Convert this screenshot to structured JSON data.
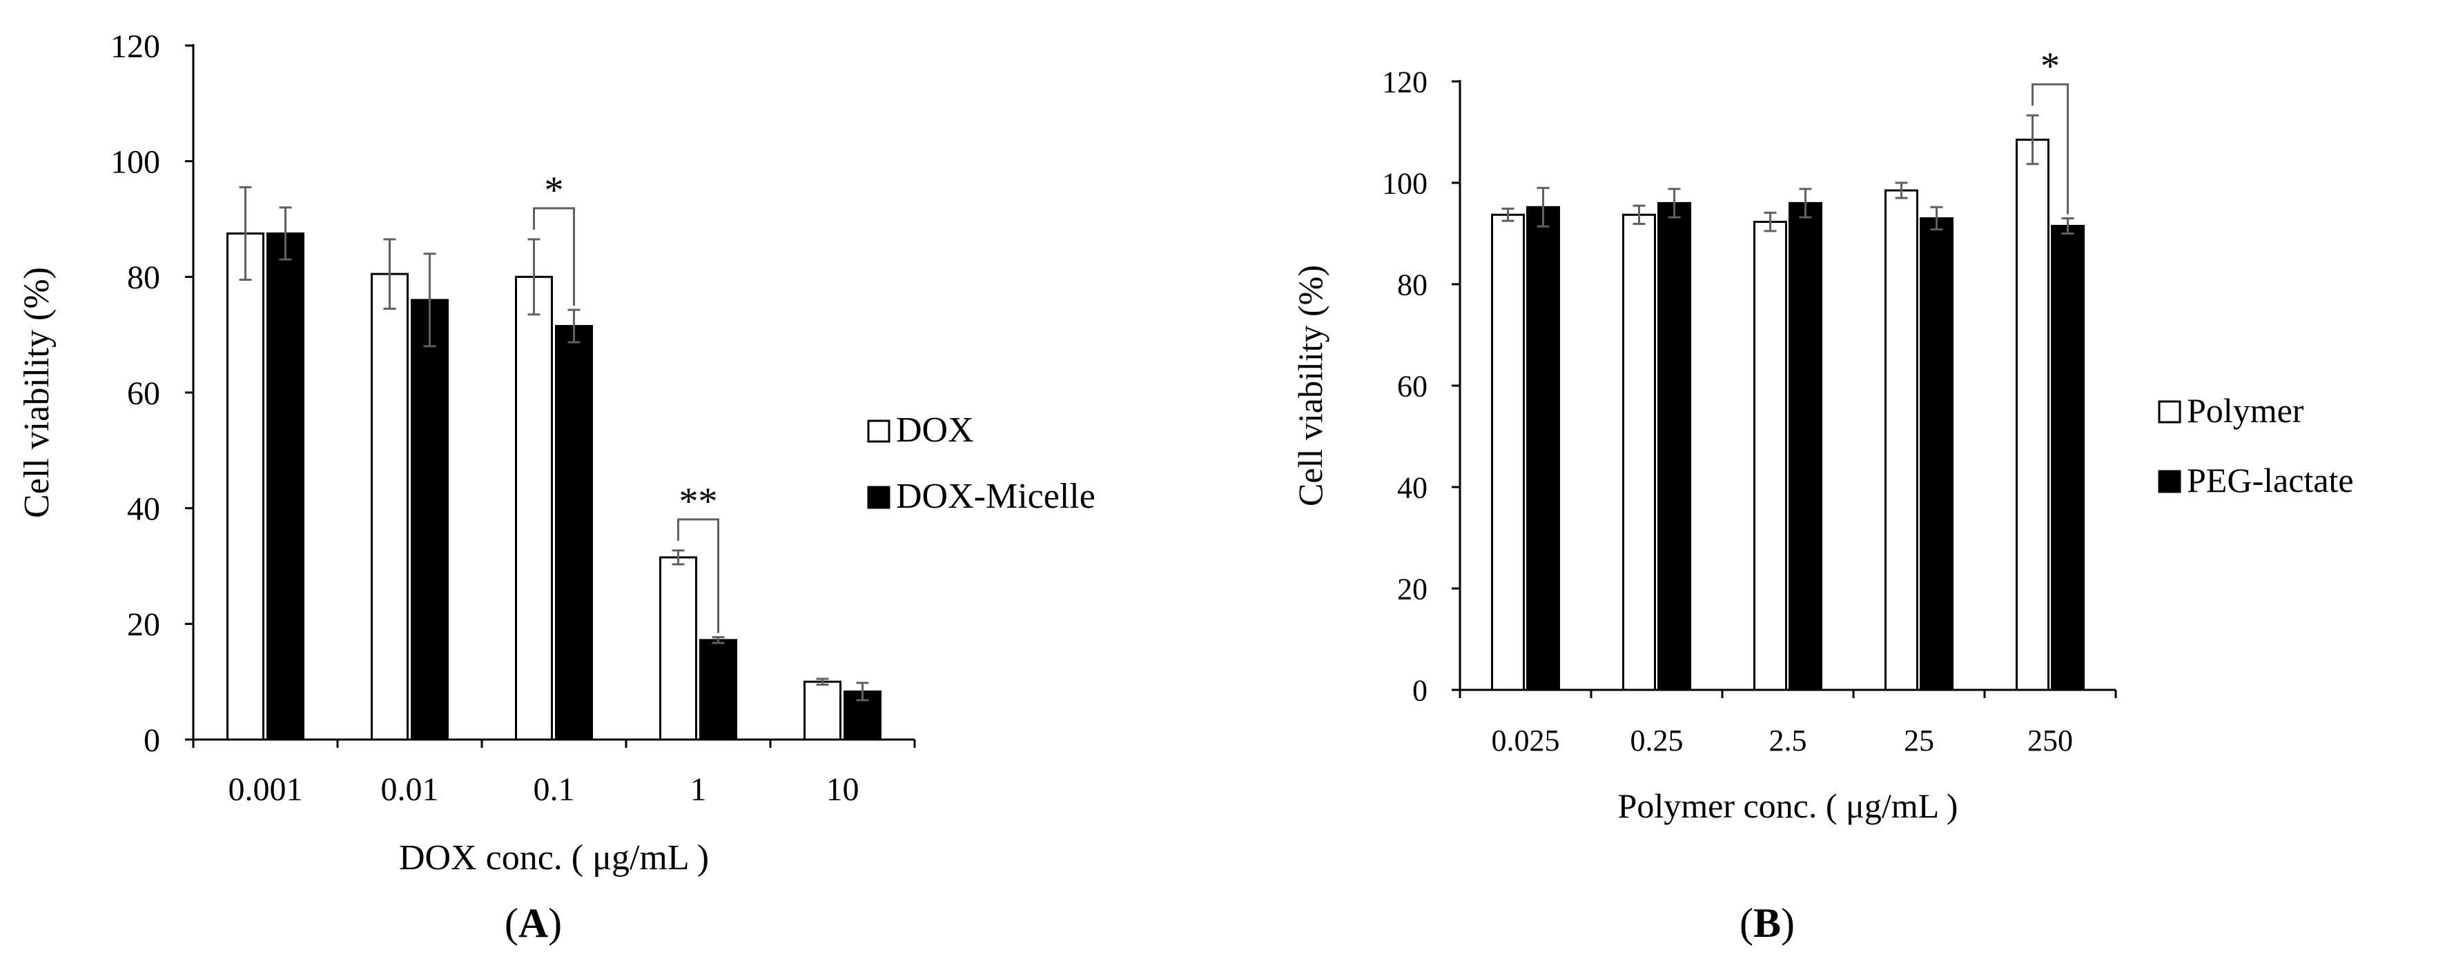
{
  "chart_data": [
    {
      "panel_label_pre": "(",
      "panel_label": "A",
      "panel_label_post": ")",
      "type": "bar",
      "xlabel": "DOX conc. ( μg/mL )",
      "ylabel": "Cell viability (%)",
      "ylim": [
        0,
        120
      ],
      "yticks": [
        0,
        20,
        40,
        60,
        80,
        100,
        120
      ],
      "categories": [
        "0.001",
        "0.01",
        "0.1",
        "1",
        "10"
      ],
      "legend_position": "right",
      "series": [
        {
          "name": "DOX",
          "fill": "#ffffff",
          "values": [
            87.5,
            80.5,
            80,
            31.5,
            10
          ],
          "errors": [
            8,
            6,
            6.5,
            1.2,
            0.5
          ]
        },
        {
          "name": "DOX-Micelle",
          "fill": "#000000",
          "values": [
            87.5,
            76,
            71.5,
            17.2,
            8.3
          ],
          "errors": [
            4.5,
            8,
            2.8,
            0.5,
            1.5
          ]
        }
      ],
      "annotations": [
        {
          "text": "*",
          "category_index": 2
        },
        {
          "text": "**",
          "category_index": 3
        }
      ]
    },
    {
      "panel_label_pre": "(",
      "panel_label": "B",
      "panel_label_post": ")",
      "type": "bar",
      "xlabel": "Polymer conc. ( μg/mL )",
      "ylabel": "Cell viability (%)",
      "ylim": [
        0,
        120
      ],
      "yticks": [
        0,
        20,
        40,
        60,
        80,
        100,
        120
      ],
      "categories": [
        "0.025",
        "0.25",
        "2.5",
        "25",
        "250"
      ],
      "legend_position": "right",
      "series": [
        {
          "name": "Polymer",
          "fill": "#ffffff",
          "values": [
            93.7,
            93.7,
            92.3,
            98.5,
            108.5
          ],
          "errors": [
            1.2,
            1.8,
            1.8,
            1.5,
            4.8
          ]
        },
        {
          "name": "PEG-lactate",
          "fill": "#000000",
          "values": [
            95.2,
            96,
            96,
            93,
            91.5
          ],
          "errors": [
            3.8,
            2.8,
            2.8,
            2.2,
            1.5
          ]
        }
      ],
      "annotations": [
        {
          "text": "*",
          "category_index": 4
        }
      ]
    }
  ]
}
